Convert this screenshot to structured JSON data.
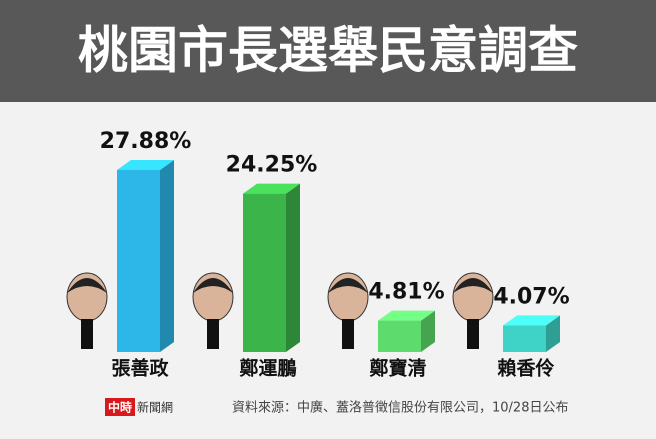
{
  "chart_data": {
    "type": "bar",
    "title": "桃園市長選舉民意調查",
    "categories": [
      "張善政",
      "鄭運鵬",
      "鄭寶清",
      "賴香伶"
    ],
    "values": [
      27.88,
      24.25,
      4.81,
      4.07
    ],
    "value_labels": [
      "27.88%",
      "24.25%",
      "4.81%",
      "4.07%"
    ],
    "colors": [
      "#2db7e8",
      "#3bb54a",
      "#5ddb6c",
      "#3ed3c6"
    ],
    "logo_mark": "中時",
    "logo_text": "新聞網",
    "source": "資料來源：中廣、蓋洛普徵信股份有限公司，10/28日公布"
  }
}
